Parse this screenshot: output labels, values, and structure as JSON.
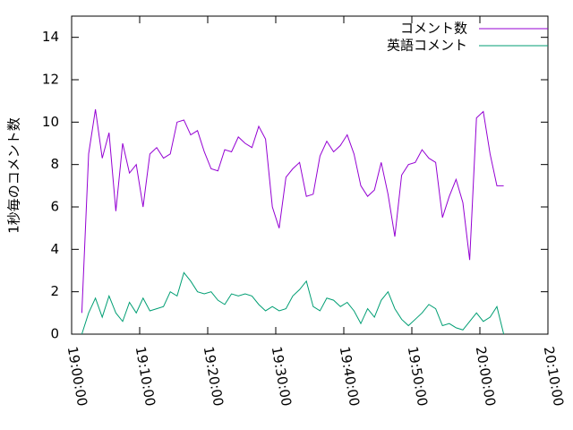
{
  "chart_data": {
    "type": "line",
    "y_label": "1秒毎のコメント数",
    "x": [
      "19:01:30",
      "19:02:30",
      "19:03:30",
      "19:04:30",
      "19:05:30",
      "19:06:30",
      "19:07:30",
      "19:08:30",
      "19:09:30",
      "19:10:30",
      "19:11:30",
      "19:12:30",
      "19:13:30",
      "19:14:30",
      "19:15:30",
      "19:16:30",
      "19:17:30",
      "19:18:30",
      "19:19:30",
      "19:20:30",
      "19:21:30",
      "19:22:30",
      "19:23:30",
      "19:24:30",
      "19:25:30",
      "19:26:30",
      "19:27:30",
      "19:28:30",
      "19:29:30",
      "19:30:30",
      "19:31:30",
      "19:32:30",
      "19:33:30",
      "19:34:30",
      "19:35:30",
      "19:36:30",
      "19:37:30",
      "19:38:30",
      "19:39:30",
      "19:40:30",
      "19:41:30",
      "19:42:30",
      "19:43:30",
      "19:44:30",
      "19:45:30",
      "19:46:30",
      "19:47:30",
      "19:48:30",
      "19:49:30",
      "19:50:30",
      "19:51:30",
      "19:52:30",
      "19:53:30",
      "19:54:30",
      "19:55:30",
      "19:56:30",
      "19:57:30",
      "19:58:30",
      "19:59:30",
      "20:00:30",
      "20:01:30",
      "20:02:30",
      "20:03:30"
    ],
    "series": [
      {
        "name": "コメント数",
        "color": "#9400d3",
        "values": [
          1,
          8.5,
          10.6,
          8.3,
          9.5,
          5.8,
          9,
          7.6,
          8,
          6,
          8.5,
          8.8,
          8.3,
          8.5,
          10,
          10.1,
          9.4,
          9.6,
          8.6,
          7.8,
          7.7,
          8.7,
          8.6,
          9.3,
          9,
          8.8,
          9.8,
          9.2,
          6,
          5,
          7.4,
          7.8,
          8.1,
          6.5,
          6.6,
          8.4,
          9.1,
          8.6,
          8.9,
          9.4,
          8.5,
          7,
          6.5,
          6.8,
          8.1,
          6.6,
          4.6,
          7.5,
          8,
          8.1,
          8.7,
          8.3,
          8.1,
          5.5,
          6.5,
          7.3,
          6.2,
          3.5,
          10.2,
          10.5,
          8.5,
          7,
          7
        ]
      },
      {
        "name": "英語コメント",
        "color": "#009e73",
        "values": [
          0,
          1,
          1.7,
          0.8,
          1.8,
          1,
          0.6,
          1.5,
          1,
          1.7,
          1.1,
          1.2,
          1.3,
          2,
          1.8,
          2.9,
          2.5,
          2,
          1.9,
          2,
          1.6,
          1.4,
          1.9,
          1.8,
          1.9,
          1.8,
          1.4,
          1.1,
          1.3,
          1.1,
          1.2,
          1.8,
          2.1,
          2.5,
          1.3,
          1.1,
          1.7,
          1.6,
          1.3,
          1.5,
          1.1,
          0.5,
          1.2,
          0.8,
          1.6,
          2,
          1.2,
          0.7,
          0.4,
          0.7,
          1,
          1.4,
          1.2,
          0.4,
          0.5,
          0.3,
          0.2,
          0.6,
          1,
          0.6,
          0.8,
          1.3,
          0
        ]
      }
    ],
    "xlim": [
      "19:00:00",
      "20:10:00"
    ],
    "xticks": [
      "19:00:00",
      "19:10:00",
      "19:20:00",
      "19:30:00",
      "19:40:00",
      "19:50:00",
      "20:00:00",
      "20:10:00"
    ],
    "ylim": [
      0,
      15
    ],
    "yticks": [
      0,
      2,
      4,
      6,
      8,
      10,
      12,
      14
    ],
    "legend": "top-right"
  }
}
